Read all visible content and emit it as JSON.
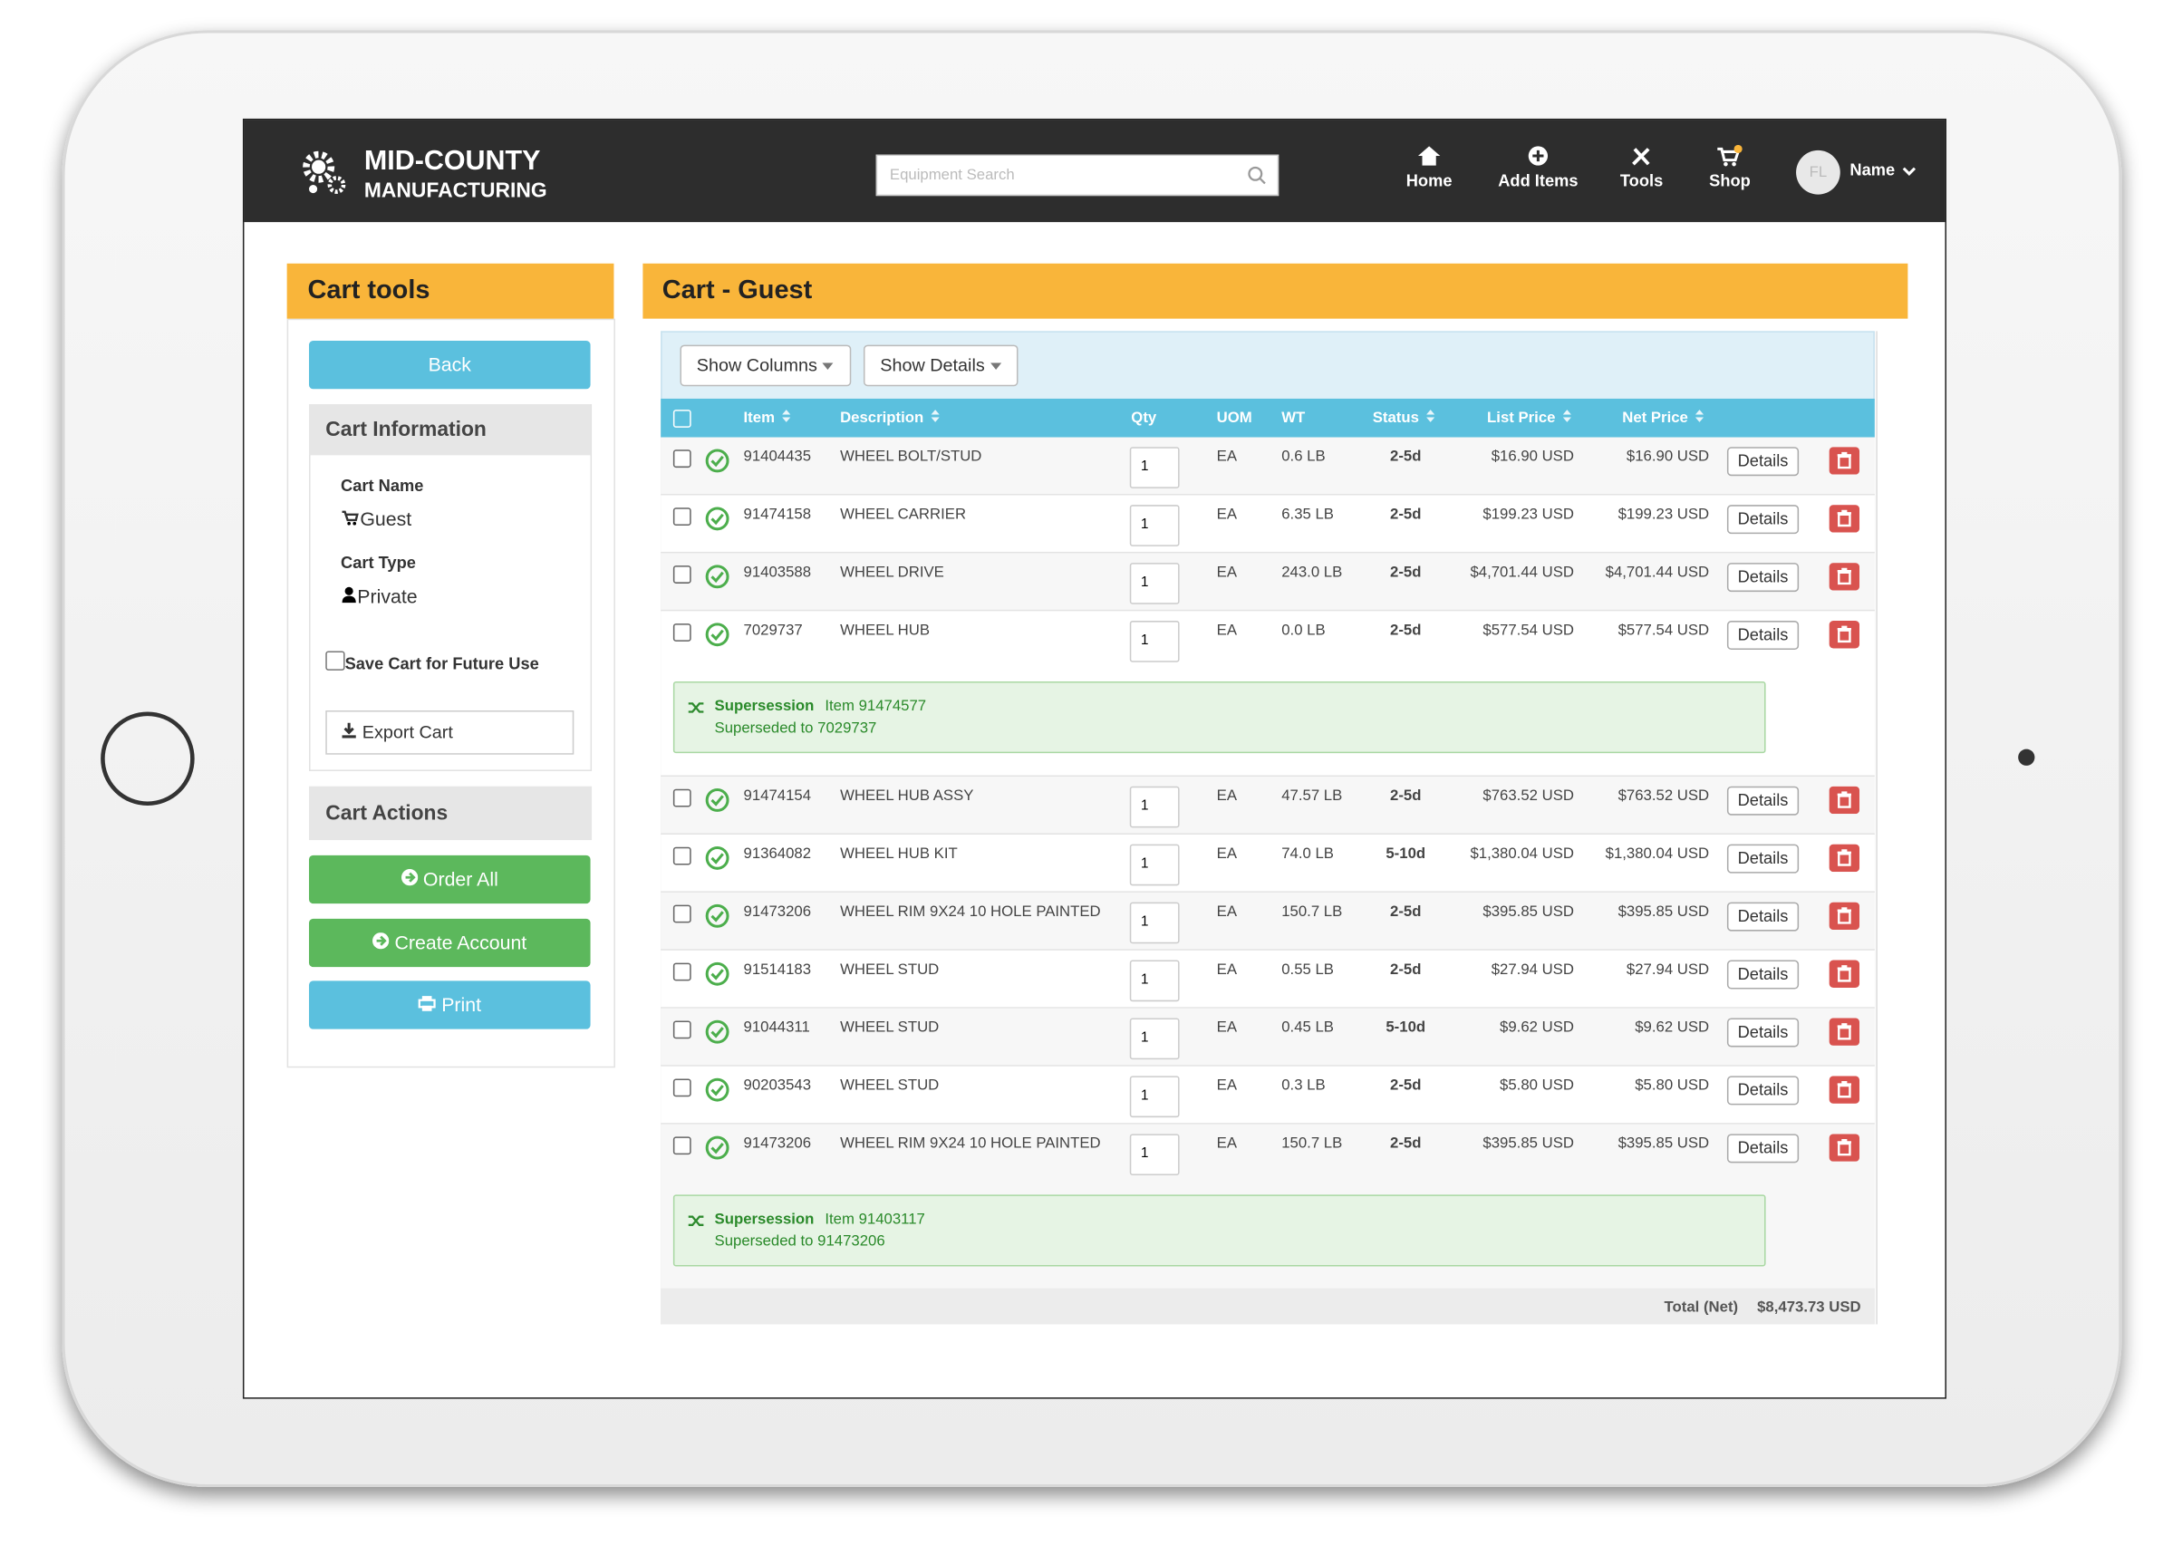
{
  "header": {
    "brand_line1": "MID-COUNTY",
    "brand_line2": "MANUFACTURING",
    "search_placeholder": "Equipment Search",
    "nav": [
      "Home",
      "Add Items",
      "Tools",
      "Shop"
    ],
    "user_initials": "FL",
    "user_name": "Name"
  },
  "sidebar": {
    "title": "Cart tools",
    "back_button": "Back",
    "cart_information": {
      "title": "Cart Information",
      "fields": [
        {
          "label": "Cart Name",
          "value": "Guest"
        },
        {
          "label": "Cart Type",
          "value": "Private"
        }
      ],
      "save_checkbox": "Save Cart for Future Use",
      "export_button": "Export Cart"
    },
    "cart_actions": {
      "title": "Cart Actions",
      "buttons": [
        "Order All",
        "Create Account",
        "Print"
      ]
    }
  },
  "main": {
    "title": "Cart - Guest",
    "toolbar": [
      "Show Columns",
      "Show Details"
    ],
    "table": {
      "columns": [
        "Item",
        "Description",
        "Qty",
        "UOM",
        "WT",
        "Status",
        "List Price",
        "Net Price"
      ],
      "details_button": "Details",
      "rows": [
        {
          "item": "91404435",
          "description": "WHEEL BOLT/STUD",
          "qty": 1,
          "uom": "EA",
          "wt": "0.6 LB",
          "status": "2-5d",
          "list_price": "$16.90 USD",
          "net_price": "$16.90 USD"
        },
        {
          "item": "91474158",
          "description": "WHEEL CARRIER",
          "qty": 1,
          "uom": "EA",
          "wt": "6.35 LB",
          "status": "2-5d",
          "list_price": "$199.23 USD",
          "net_price": "$199.23 USD"
        },
        {
          "item": "91403588",
          "description": "WHEEL DRIVE",
          "qty": 1,
          "uom": "EA",
          "wt": "243.0 LB",
          "status": "2-5d",
          "list_price": "$4,701.44 USD",
          "net_price": "$4,701.44 USD"
        },
        {
          "item": "7029737",
          "description": "WHEEL HUB",
          "qty": 1,
          "uom": "EA",
          "wt": "0.0 LB",
          "status": "2-5d",
          "list_price": "$577.54 USD",
          "net_price": "$577.54 USD",
          "supersession": {
            "title": "Supersession",
            "item": "Item 91474577",
            "note": "Superseded to 7029737"
          }
        },
        {
          "item": "91474154",
          "description": "WHEEL HUB ASSY",
          "qty": 1,
          "uom": "EA",
          "wt": "47.57 LB",
          "status": "2-5d",
          "list_price": "$763.52 USD",
          "net_price": "$763.52 USD"
        },
        {
          "item": "91364082",
          "description": "WHEEL HUB KIT",
          "qty": 1,
          "uom": "EA",
          "wt": "74.0 LB",
          "status": "5-10d",
          "list_price": "$1,380.04 USD",
          "net_price": "$1,380.04 USD"
        },
        {
          "item": "91473206",
          "description": "WHEEL RIM 9X24 10 HOLE PAINTED",
          "qty": 1,
          "uom": "EA",
          "wt": "150.7 LB",
          "status": "2-5d",
          "list_price": "$395.85 USD",
          "net_price": "$395.85 USD"
        },
        {
          "item": "91514183",
          "description": "WHEEL STUD",
          "qty": 1,
          "uom": "EA",
          "wt": "0.55 LB",
          "status": "2-5d",
          "list_price": "$27.94 USD",
          "net_price": "$27.94 USD"
        },
        {
          "item": "91044311",
          "description": "WHEEL STUD",
          "qty": 1,
          "uom": "EA",
          "wt": "0.45 LB",
          "status": "5-10d",
          "list_price": "$9.62 USD",
          "net_price": "$9.62 USD"
        },
        {
          "item": "90203543",
          "description": "WHEEL STUD",
          "qty": 1,
          "uom": "EA",
          "wt": "0.3 LB",
          "status": "2-5d",
          "list_price": "$5.80 USD",
          "net_price": "$5.80 USD"
        },
        {
          "item": "91473206",
          "description": "WHEEL RIM 9X24 10 HOLE PAINTED",
          "qty": 1,
          "uom": "EA",
          "wt": "150.7 LB",
          "status": "2-5d",
          "list_price": "$395.85 USD",
          "net_price": "$395.85 USD",
          "supersession": {
            "title": "Supersession",
            "item": "Item 91403117",
            "note": "Superseded to 91473206"
          }
        }
      ],
      "total_label": "Total (Net)",
      "total_value": "$8,473.73 USD"
    }
  }
}
